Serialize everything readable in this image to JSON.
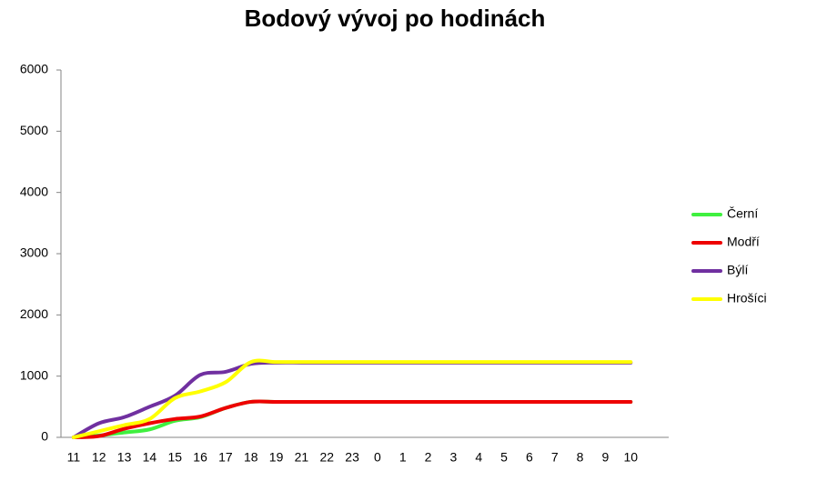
{
  "chart_data": {
    "type": "line",
    "title": "Bodový vývoj po hodinách",
    "categories": [
      "11",
      "12",
      "13",
      "14",
      "15",
      "16",
      "17",
      "18",
      "19",
      "21",
      "22",
      "23",
      "0",
      "1",
      "2",
      "3",
      "4",
      "5",
      "6",
      "7",
      "8",
      "9",
      "10"
    ],
    "series": [
      {
        "name": "Černí",
        "color": "#3ff03f",
        "values": [
          0,
          30,
          80,
          130,
          270,
          330,
          480,
          580,
          580,
          580,
          580,
          580,
          580,
          580,
          580,
          580,
          580,
          580,
          580,
          580,
          580,
          580,
          580
        ]
      },
      {
        "name": "Modří",
        "color": "#ee0000",
        "values": [
          0,
          20,
          140,
          230,
          300,
          340,
          480,
          580,
          580,
          580,
          580,
          580,
          580,
          580,
          580,
          580,
          580,
          580,
          580,
          580,
          580,
          580,
          580
        ]
      },
      {
        "name": "Býlí",
        "color": "#7030a0",
        "values": [
          0,
          230,
          330,
          500,
          680,
          1020,
          1070,
          1200,
          1220,
          1220,
          1220,
          1220,
          1220,
          1220,
          1220,
          1220,
          1220,
          1220,
          1220,
          1220,
          1220,
          1220,
          1220
        ]
      },
      {
        "name": "Hrošíci",
        "color": "#ffff00",
        "values": [
          0,
          100,
          200,
          300,
          640,
          750,
          900,
          1230,
          1230,
          1230,
          1230,
          1230,
          1230,
          1230,
          1230,
          1230,
          1230,
          1230,
          1230,
          1230,
          1230,
          1230,
          1230
        ]
      }
    ],
    "ylim": [
      0,
      6000
    ],
    "yticks": [
      0,
      1000,
      2000,
      3000,
      4000,
      5000,
      6000
    ],
    "legend": "right"
  }
}
